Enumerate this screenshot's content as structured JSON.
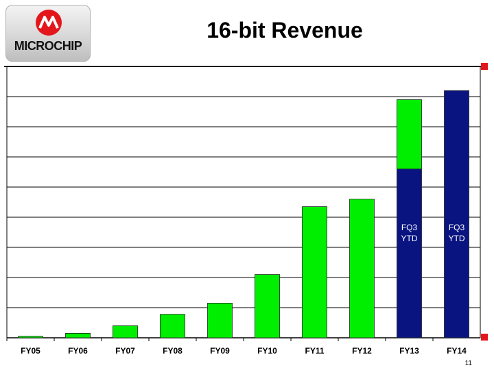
{
  "header": {
    "logo_text": "MICROCHIP",
    "title": "16-bit Revenue"
  },
  "footer": {
    "page_number": "11"
  },
  "colors": {
    "green": "#00ee00",
    "navy": "#0a1480",
    "accent_red": "#e3171b"
  },
  "chart_data": {
    "type": "bar",
    "title": "16-bit Revenue",
    "xlabel": "",
    "ylabel": "",
    "ylim": [
      0,
      9
    ],
    "grid": true,
    "categories": [
      "FY05",
      "FY06",
      "FY07",
      "FY08",
      "FY09",
      "FY10",
      "FY11",
      "FY12",
      "FY13",
      "FY14"
    ],
    "series": [
      {
        "color": "#0a1480",
        "values": [
          0,
          0,
          0,
          0,
          0,
          0,
          0,
          0,
          5.6,
          8.2
        ]
      },
      {
        "color": "#00ee00",
        "values": [
          0.05,
          0.15,
          0.4,
          0.78,
          1.15,
          2.1,
          4.35,
          4.6,
          2.3,
          0
        ]
      }
    ],
    "annotations": [
      {
        "category": "FY13",
        "text": "FQ3\nYTD"
      },
      {
        "category": "FY14",
        "text": "FQ3\nYTD"
      }
    ]
  }
}
